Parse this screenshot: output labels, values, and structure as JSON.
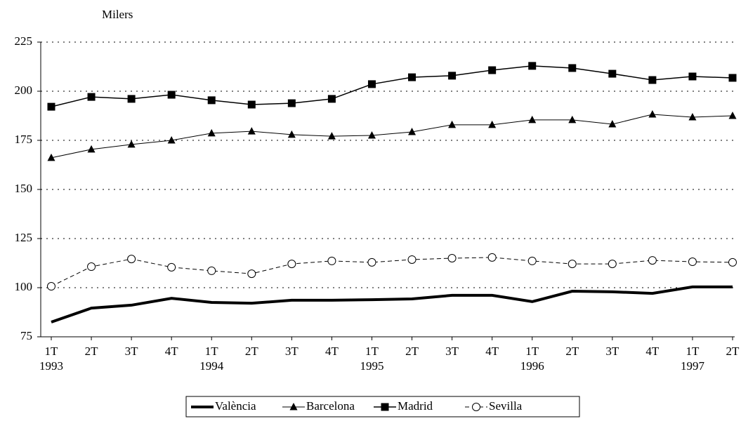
{
  "chart_data": {
    "type": "line",
    "y_axis_label": "Milers",
    "categories": [
      "1T",
      "2T",
      "3T",
      "4T",
      "1T",
      "2T",
      "3T",
      "4T",
      "1T",
      "2T",
      "3T",
      "4T",
      "1T",
      "2T",
      "3T",
      "4T",
      "1T",
      "2T"
    ],
    "year_labels": [
      "1993",
      null,
      null,
      null,
      "1994",
      null,
      null,
      null,
      "1995",
      null,
      null,
      null,
      "1996",
      null,
      null,
      null,
      "1997",
      null
    ],
    "ylim": [
      75,
      225
    ],
    "yticks": [
      75,
      100,
      125,
      150,
      175,
      200,
      225
    ],
    "grid": true,
    "series": [
      {
        "name": "València",
        "color": "#000000",
        "marker": "none",
        "dash": "solid",
        "width": 4,
        "values": [
          82.5,
          89.6,
          91.1,
          94.6,
          92.5,
          92.1,
          93.6,
          93.6,
          93.9,
          94.3,
          96.1,
          96.1,
          92.9,
          98.2,
          97.9,
          97.1,
          100.4,
          100.4
        ]
      },
      {
        "name": "Barcelona",
        "color": "#000000",
        "marker": "triangle",
        "dash": "solid",
        "width": 1,
        "values": [
          166.1,
          170.4,
          172.9,
          175,
          178.6,
          179.6,
          177.9,
          177.1,
          177.5,
          179.3,
          182.9,
          182.9,
          185.4,
          185.4,
          183.2,
          188.2,
          186.8,
          187.5
        ]
      },
      {
        "name": "Madrid",
        "color": "#000000",
        "marker": "square",
        "dash": "solid",
        "width": 1.5,
        "values": [
          192.1,
          197.1,
          196.1,
          198.2,
          195.4,
          193.2,
          193.9,
          196.1,
          203.6,
          207.1,
          207.9,
          210.7,
          212.9,
          211.8,
          208.9,
          205.7,
          207.5,
          206.8
        ]
      },
      {
        "name": "Sevilla",
        "color": "#000000",
        "marker": "circle",
        "dash": "dashed",
        "width": 1,
        "values": [
          100.7,
          110.7,
          114.6,
          110.4,
          108.6,
          107.1,
          112.1,
          113.6,
          112.9,
          114.3,
          115,
          115.4,
          113.6,
          112.1,
          112.1,
          113.9,
          113.2,
          112.9
        ]
      }
    ]
  }
}
